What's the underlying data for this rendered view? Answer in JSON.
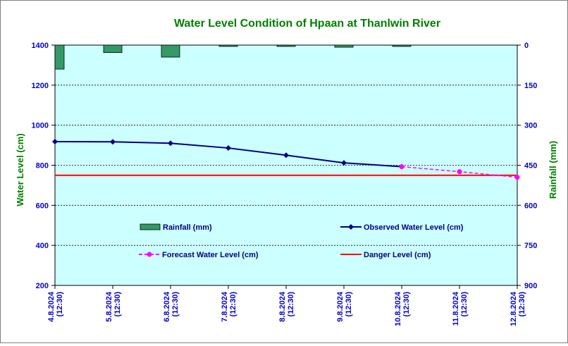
{
  "chart_data": {
    "type": "line",
    "title": "Water Level Condition of Hpaan at Thanlwin River",
    "ylabel_left": "Water Level (cm)",
    "ylabel_right": "Rainfall (mm)",
    "x": [
      "4.8.2024 (12:30)",
      "5.8.2024 (12:30)",
      "6.8.2024 (12:30)",
      "7.8.2024 (12:30)",
      "8.8.2024 (12:30)",
      "9.8.2024 (12:30)",
      "10.8.2024 (12:30)",
      "11.8.2024 (12:30)",
      "12.8.2024 (12:30)"
    ],
    "ylim_left": [
      200,
      1400
    ],
    "yticks_left": [
      200,
      400,
      600,
      800,
      1000,
      1200,
      1400
    ],
    "ylim_right": [
      900,
      0
    ],
    "yticks_right": [
      0,
      150,
      300,
      450,
      600,
      750,
      900
    ],
    "grid": true,
    "series": [
      {
        "name": "Rainfall (mm)",
        "kind": "bar",
        "axis": "right",
        "color": "#339966",
        "values": [
          90,
          28,
          45,
          5,
          5,
          8,
          5,
          null,
          null
        ]
      },
      {
        "name": "Observed Water Level (cm)",
        "kind": "line",
        "axis": "left",
        "color": "#000080",
        "values": [
          918,
          917,
          910,
          886,
          850,
          812,
          793,
          null,
          null
        ]
      },
      {
        "name": "Forecast Water Level (cm)",
        "kind": "line-dashed",
        "axis": "left",
        "color": "#ff00ff",
        "values": [
          null,
          null,
          null,
          null,
          null,
          null,
          793,
          768,
          740
        ]
      },
      {
        "name": "Danger Level (cm)",
        "kind": "hline",
        "axis": "left",
        "color": "#ff0000",
        "value": 750
      }
    ]
  }
}
